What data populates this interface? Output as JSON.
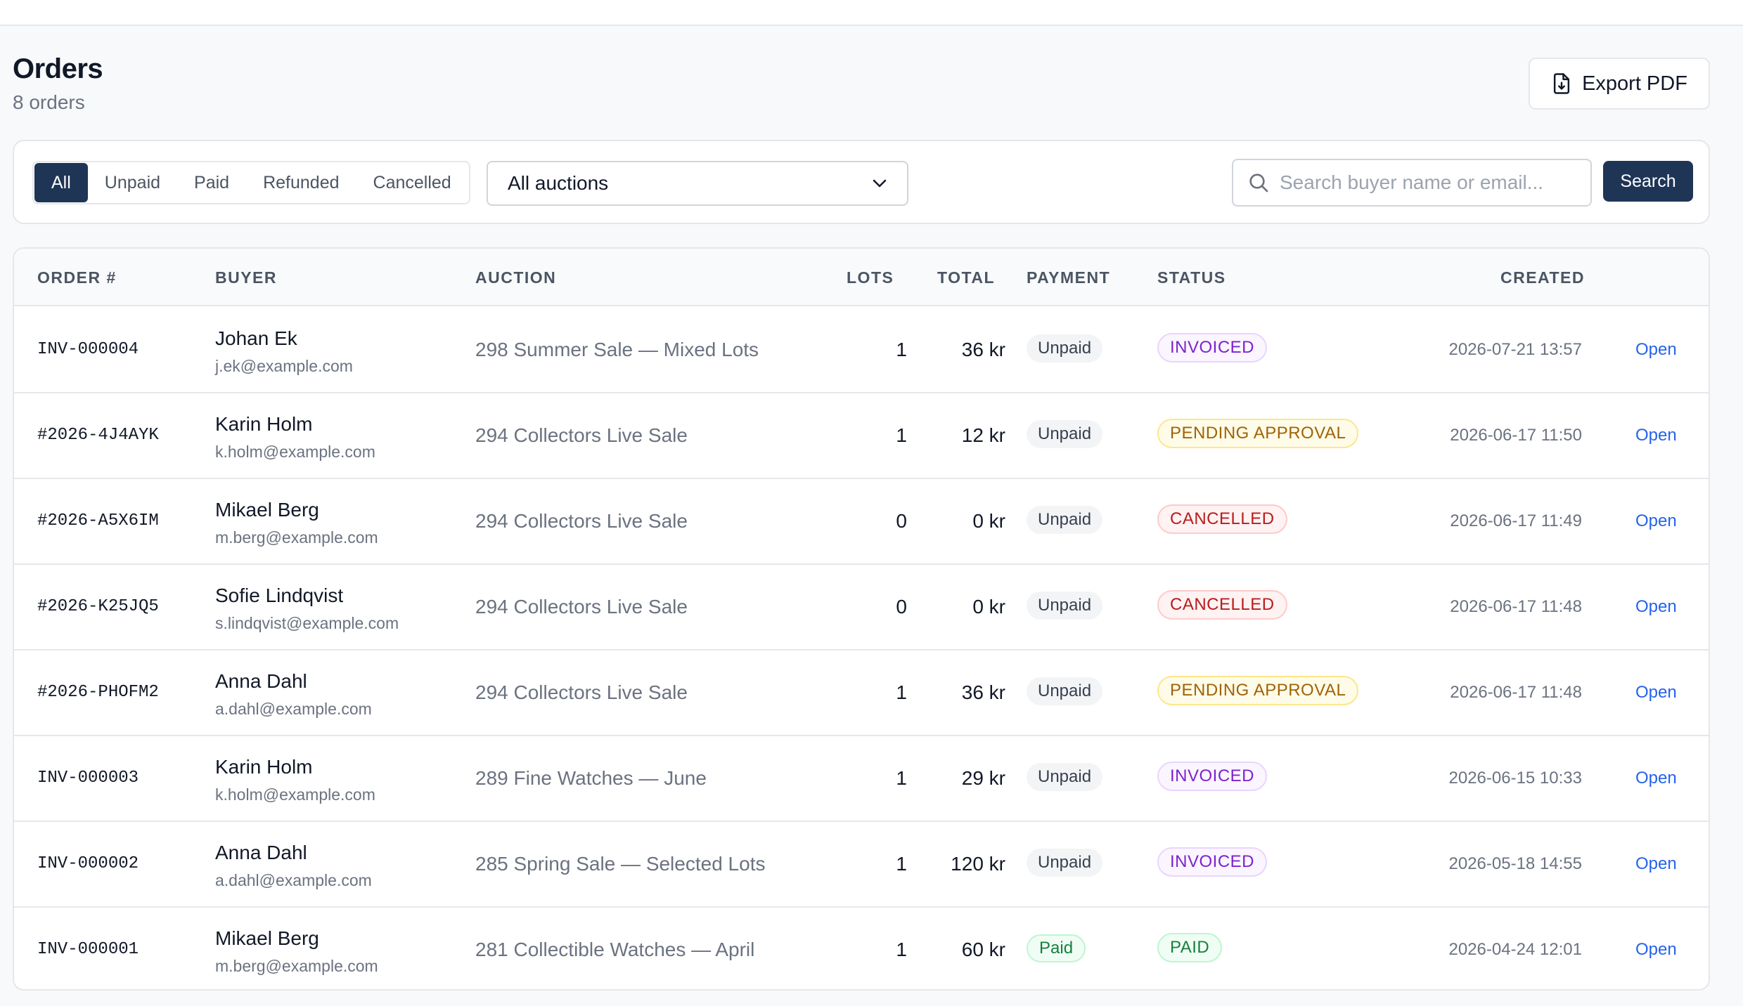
{
  "header": {
    "title": "Orders",
    "subtitle": "8 orders",
    "export_label": "Export PDF"
  },
  "filters": {
    "tabs": [
      {
        "label": "All",
        "active": true
      },
      {
        "label": "Unpaid",
        "active": false
      },
      {
        "label": "Paid",
        "active": false
      },
      {
        "label": "Refunded",
        "active": false
      },
      {
        "label": "Cancelled",
        "active": false
      }
    ],
    "auction_select": "All auctions",
    "search_placeholder": "Search buyer name or email...",
    "search_value": "",
    "search_label": "Search"
  },
  "table": {
    "columns": [
      "ORDER #",
      "BUYER",
      "AUCTION",
      "LOTS",
      "TOTAL",
      "PAYMENT",
      "STATUS",
      "CREATED"
    ],
    "open_label": "Open",
    "rows": [
      {
        "order": "INV-000004",
        "name": "Johan Ek",
        "email": "j.ek@example.com",
        "auction": "298 Summer Sale — Mixed Lots",
        "lots": "1",
        "total": "36 kr",
        "payment": "Unpaid",
        "status": "INVOICED",
        "created": "2026-07-21 13:57"
      },
      {
        "order": "#2026-4J4AYK",
        "name": "Karin Holm",
        "email": "k.holm@example.com",
        "auction": "294 Collectors Live Sale",
        "lots": "1",
        "total": "12 kr",
        "payment": "Unpaid",
        "status": "PENDING APPROVAL",
        "created": "2026-06-17 11:50"
      },
      {
        "order": "#2026-A5X6IM",
        "name": "Mikael Berg",
        "email": "m.berg@example.com",
        "auction": "294 Collectors Live Sale",
        "lots": "0",
        "total": "0 kr",
        "payment": "Unpaid",
        "status": "CANCELLED",
        "created": "2026-06-17 11:49"
      },
      {
        "order": "#2026-K25JQ5",
        "name": "Sofie Lindqvist",
        "email": "s.lindqvist@example.com",
        "auction": "294 Collectors Live Sale",
        "lots": "0",
        "total": "0 kr",
        "payment": "Unpaid",
        "status": "CANCELLED",
        "created": "2026-06-17 11:48"
      },
      {
        "order": "#2026-PHOFM2",
        "name": "Anna Dahl",
        "email": "a.dahl@example.com",
        "auction": "294 Collectors Live Sale",
        "lots": "1",
        "total": "36 kr",
        "payment": "Unpaid",
        "status": "PENDING APPROVAL",
        "created": "2026-06-17 11:48"
      },
      {
        "order": "INV-000003",
        "name": "Karin Holm",
        "email": "k.holm@example.com",
        "auction": "289 Fine Watches — June",
        "lots": "1",
        "total": "29 kr",
        "payment": "Unpaid",
        "status": "INVOICED",
        "created": "2026-06-15 10:33"
      },
      {
        "order": "INV-000002",
        "name": "Anna Dahl",
        "email": "a.dahl@example.com",
        "auction": "285 Spring Sale — Selected Lots",
        "lots": "1",
        "total": "120 kr",
        "payment": "Unpaid",
        "status": "INVOICED",
        "created": "2026-05-18 14:55"
      },
      {
        "order": "INV-000001",
        "name": "Mikael Berg",
        "email": "m.berg@example.com",
        "auction": "281 Collectible Watches — April",
        "lots": "1",
        "total": "60 kr",
        "payment": "Paid",
        "status": "PAID",
        "created": "2026-04-24 12:01"
      }
    ]
  },
  "icons": {
    "export": "file-download-icon",
    "search": "search-icon",
    "select": "chevron-down-icon"
  },
  "colors": {
    "primary": "#1f3556",
    "link": "#2563eb"
  }
}
